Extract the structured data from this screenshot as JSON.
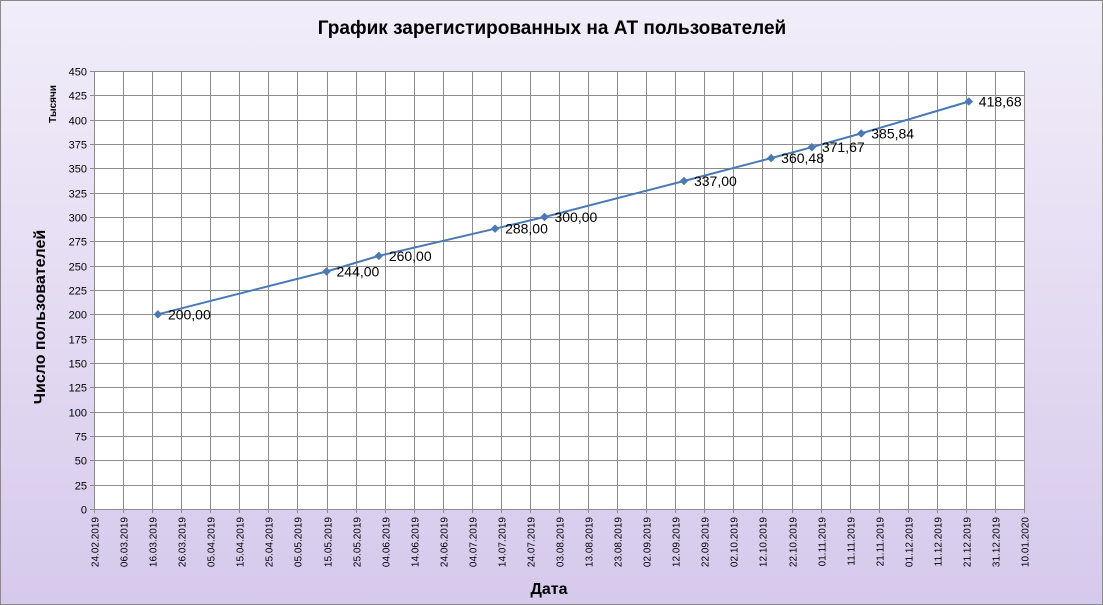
{
  "chart_data": {
    "type": "line",
    "title": "График зарегистированных на АТ пользователей",
    "ylabel": "Число пользователей",
    "ylabel_unit": "Тысячи",
    "xlabel": "Дата",
    "ylim": [
      0,
      450
    ],
    "y_tick_step": 25,
    "y_tick_labels": [
      "0",
      "25",
      "50",
      "75",
      "100",
      "125",
      "150",
      "175",
      "200",
      "225",
      "250",
      "275",
      "300",
      "325",
      "350",
      "375",
      "400",
      "425",
      "450"
    ],
    "xlim": [
      "2019-02-24",
      "2020-01-10"
    ],
    "x_tick_labels": [
      "24.02.2019",
      "06.03.2019",
      "16.03.2019",
      "26.03.2019",
      "05.04.2019",
      "15.04.2019",
      "25.04.2019",
      "05.05.2019",
      "15.05.2019",
      "25.05.2019",
      "04.06.2019",
      "14.06.2019",
      "24.06.2019",
      "04.07.2019",
      "14.07.2019",
      "24.07.2019",
      "03.08.2019",
      "13.08.2019",
      "23.08.2019",
      "02.09.2019",
      "12.09.2019",
      "22.09.2019",
      "02.10.2019",
      "12.10.2019",
      "22.10.2019",
      "01.11.2019",
      "11.11.2019",
      "21.11.2019",
      "01.12.2019",
      "11.12.2019",
      "21.12.2019",
      "31.12.2019",
      "10.01.2020"
    ],
    "grid": true,
    "legend": "none",
    "series": [
      {
        "color": "#4a7ab5",
        "marker": "diamond",
        "points": [
          {
            "x": "2019-03-18",
            "y": 200.0,
            "label": "200,00"
          },
          {
            "x": "2019-05-15",
            "y": 244.0,
            "label": "244,00"
          },
          {
            "x": "2019-06-02",
            "y": 260.0,
            "label": "260,00"
          },
          {
            "x": "2019-07-12",
            "y": 288.0,
            "label": "288,00"
          },
          {
            "x": "2019-07-29",
            "y": 300.0,
            "label": "300,00"
          },
          {
            "x": "2019-09-15",
            "y": 337.0,
            "label": "337,00"
          },
          {
            "x": "2019-10-15",
            "y": 360.48,
            "label": "360,48"
          },
          {
            "x": "2019-10-29",
            "y": 371.67,
            "label": "371,67"
          },
          {
            "x": "2019-11-15",
            "y": 385.84,
            "label": "385,84"
          },
          {
            "x": "2019-12-22",
            "y": 418.68,
            "label": "418,68"
          }
        ]
      }
    ]
  }
}
